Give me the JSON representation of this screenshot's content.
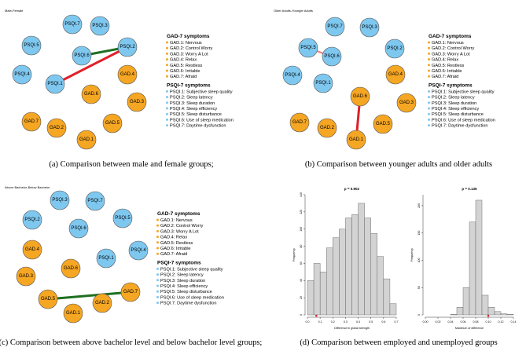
{
  "colors": {
    "gad_fill": "#f5a623",
    "psqi_fill": "#7ec8f0",
    "edge_positive": "#1f6f1f",
    "edge_negative": "#e0202a",
    "edge_negative_light": "#f08080",
    "hist_fill": "#d3d3d3",
    "hist_stroke": "#555555",
    "observed_marker": "#e0202a"
  },
  "legend": {
    "gad_title": "GAD-7 symptoms",
    "gad_items": [
      "GAD.1: Nervous",
      "GAD.2: Control Worry",
      "GAD.3: Worry A Lot",
      "GAD.4: Relax",
      "GAD.5: Restless",
      "GAD.6: Irritable",
      "GAD.7: Afraid"
    ],
    "psqi_title": "PSQI-7 symptoms",
    "psqi_items": [
      "PSQI.1: Subjective sleep quality",
      "PSQI.2: Sleep latency",
      "PSQI.3: Sleep duration",
      "PSQI.4: Sleep efficiency",
      "PSQI.5: Sleep disturbance",
      "PSQI.6: Use of sleep medication",
      "PSQI.7: Daytime dysfunction"
    ]
  },
  "panels": {
    "a": {
      "title": "Male-Female",
      "caption": "(a) Comparison between male and female groups;",
      "nodes": [
        {
          "id": "PSQI.7",
          "group": "psqi"
        },
        {
          "id": "PSQI.3",
          "group": "psqi"
        },
        {
          "id": "PSQI.5",
          "group": "psqi"
        },
        {
          "id": "PSQI.2",
          "group": "psqi"
        },
        {
          "id": "PSQI.6",
          "group": "psqi"
        },
        {
          "id": "PSQI.4",
          "group": "psqi"
        },
        {
          "id": "GAD.4",
          "group": "gad"
        },
        {
          "id": "PSQI.1",
          "group": "psqi"
        },
        {
          "id": "GAD.6",
          "group": "gad"
        },
        {
          "id": "GAD.3",
          "group": "gad"
        },
        {
          "id": "GAD.7",
          "group": "gad"
        },
        {
          "id": "GAD.2",
          "group": "gad"
        },
        {
          "id": "GAD.5",
          "group": "gad"
        },
        {
          "id": "GAD.1",
          "group": "gad"
        }
      ],
      "edges": [
        {
          "from": "PSQI.6",
          "to": "PSQI.2",
          "sign": "positive",
          "weight": 3
        },
        {
          "from": "PSQI.1",
          "to": "PSQI.2",
          "sign": "negative",
          "weight": 3
        }
      ]
    },
    "b": {
      "title": "Older Adults-Younger Adults",
      "caption": "(b) Comparison between younger adults and older adults",
      "nodes": [
        {
          "id": "PSQI.7",
          "group": "psqi"
        },
        {
          "id": "PSQI.3",
          "group": "psqi"
        },
        {
          "id": "PSQI.5",
          "group": "psqi"
        },
        {
          "id": "PSQI.2",
          "group": "psqi"
        },
        {
          "id": "PSQI.6",
          "group": "psqi"
        },
        {
          "id": "PSQI.4",
          "group": "psqi"
        },
        {
          "id": "GAD.4",
          "group": "gad"
        },
        {
          "id": "PSQI.1",
          "group": "psqi"
        },
        {
          "id": "GAD.6",
          "group": "gad"
        },
        {
          "id": "GAD.3",
          "group": "gad"
        },
        {
          "id": "GAD.7",
          "group": "gad"
        },
        {
          "id": "GAD.2",
          "group": "gad"
        },
        {
          "id": "GAD.5",
          "group": "gad"
        },
        {
          "id": "GAD.1",
          "group": "gad"
        }
      ],
      "edges": [
        {
          "from": "PSQI.5",
          "to": "PSQI.6",
          "sign": "negative_light",
          "weight": 2
        },
        {
          "from": "GAD.6",
          "to": "GAD.1",
          "sign": "negative",
          "weight": 3
        }
      ]
    },
    "c": {
      "title": "Above Bachelor-Below Bachelor",
      "caption": "(c) Comparison between above bachelor level and below bachelor level groups;",
      "nodes": [
        {
          "id": "PSQI.3",
          "group": "psqi"
        },
        {
          "id": "PSQI.7",
          "group": "psqi"
        },
        {
          "id": "PSQI.2",
          "group": "psqi"
        },
        {
          "id": "PSQI.6",
          "group": "psqi"
        },
        {
          "id": "PSQI.5",
          "group": "psqi"
        },
        {
          "id": "GAD.4",
          "group": "gad"
        },
        {
          "id": "PSQI.1",
          "group": "psqi"
        },
        {
          "id": "PSQI.4",
          "group": "psqi"
        },
        {
          "id": "GAD.6",
          "group": "gad"
        },
        {
          "id": "GAD.3",
          "group": "gad"
        },
        {
          "id": "GAD.7",
          "group": "gad"
        },
        {
          "id": "GAD.5",
          "group": "gad"
        },
        {
          "id": "GAD.2",
          "group": "gad"
        },
        {
          "id": "GAD.1",
          "group": "gad"
        }
      ],
      "edges": [
        {
          "from": "GAD.5",
          "to": "GAD.7",
          "sign": "positive",
          "weight": 3
        }
      ]
    },
    "d": {
      "caption": "(d) Comparison between employed and unemployed groups"
    }
  },
  "chart_data": [
    {
      "type": "bar",
      "title": "p = 0.902",
      "xlabel": "Difference in global strength",
      "ylabel": "Frequency",
      "bin_edges": [
        0.0,
        0.05,
        0.1,
        0.15,
        0.2,
        0.25,
        0.3,
        0.35,
        0.4,
        0.45,
        0.5,
        0.55,
        0.6,
        0.65,
        0.7
      ],
      "values": [
        40,
        60,
        50,
        78,
        90,
        100,
        113,
        117,
        130,
        113,
        95,
        68,
        42,
        13
      ],
      "xlim": [
        0.0,
        0.7
      ],
      "ylim": [
        0,
        140
      ],
      "xticks": [
        "0.0",
        "0.1",
        "0.2",
        "0.3",
        "0.4",
        "0.5",
        "0.6",
        "0.7"
      ],
      "yticks": [
        "0",
        "20",
        "40",
        "60",
        "80",
        "100",
        "120",
        "140"
      ],
      "observed": 0.07
    },
    {
      "type": "bar",
      "title": "p = 0.135",
      "xlabel": "Maximum of difference",
      "ylabel": "Frequency",
      "bin_edges": [
        0.04,
        0.05,
        0.06,
        0.07,
        0.08,
        0.09,
        0.1,
        0.11,
        0.12,
        0.13,
        0.14
      ],
      "values": [
        1,
        14,
        50,
        170,
        210,
        36,
        14,
        6,
        2,
        1
      ],
      "xlim": [
        0.0,
        0.14
      ],
      "ylim": [
        0,
        220
      ],
      "xticks": [
        "0.00",
        "0.02",
        "0.04",
        "0.06",
        "0.08",
        "0.10",
        "0.12",
        "0.14"
      ],
      "yticks": [
        "0",
        "50",
        "100",
        "150",
        "200"
      ],
      "observed": 0.1
    }
  ]
}
